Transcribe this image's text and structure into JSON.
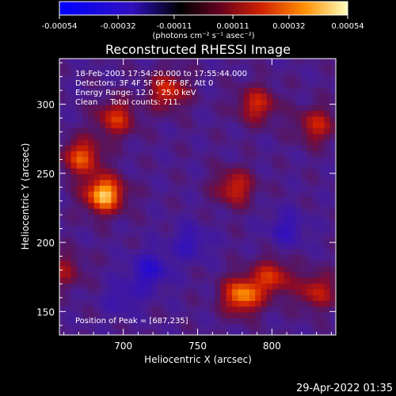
{
  "chart_data": {
    "type": "heatmap",
    "title": "Reconstructed RHESSI Image",
    "xlabel": "Heliocentric X (arcsec)",
    "ylabel": "Heliocentric Y (arcsec)",
    "xlim": [
      657,
      843
    ],
    "ylim": [
      133,
      333
    ],
    "x_ticks": [
      700,
      750,
      800
    ],
    "y_ticks": [
      150,
      200,
      250,
      300
    ],
    "colorbar": {
      "ticks": [
        "-0.00054",
        "-0.00032",
        "-0.00011",
        "0.00011",
        "0.00032",
        "0.00054"
      ],
      "unit_label": "(photons cm⁻² s⁻¹ asec⁻²)",
      "range": [
        -0.00054,
        0.00054
      ]
    },
    "annotations": [
      "18-Feb-2003 17:54:20.000 to 17:55:44.000",
      "Detectors: 3F 4F 5F 6F 7F 8F, Att 0",
      "Energy Range: 12.0 - 25.0 keV",
      "Clean     Total counts: 711."
    ],
    "peak_label": "Position of Peak = [687,235]",
    "peak": {
      "x": 687,
      "y": 235
    },
    "hot_spots": [
      {
        "x": 687,
        "y": 235,
        "v": 0.00054
      },
      {
        "x": 672,
        "y": 262,
        "v": 0.00036
      },
      {
        "x": 695,
        "y": 290,
        "v": 0.0003
      },
      {
        "x": 730,
        "y": 310,
        "v": 0.0003
      },
      {
        "x": 775,
        "y": 240,
        "v": 0.00028
      },
      {
        "x": 790,
        "y": 300,
        "v": 0.00028
      },
      {
        "x": 830,
        "y": 285,
        "v": 0.00026
      },
      {
        "x": 780,
        "y": 162,
        "v": 0.00045
      },
      {
        "x": 800,
        "y": 175,
        "v": 0.0003
      },
      {
        "x": 830,
        "y": 165,
        "v": 0.00026
      },
      {
        "x": 660,
        "y": 180,
        "v": 0.00018
      }
    ],
    "cold_spots": [
      {
        "x": 718,
        "y": 180,
        "v": -0.00022
      },
      {
        "x": 745,
        "y": 200,
        "v": -0.00015
      },
      {
        "x": 810,
        "y": 210,
        "v": -0.00015
      },
      {
        "x": 700,
        "y": 160,
        "v": -0.00012
      }
    ]
  },
  "footer": {
    "date": "29-Apr-2022 01:35"
  }
}
